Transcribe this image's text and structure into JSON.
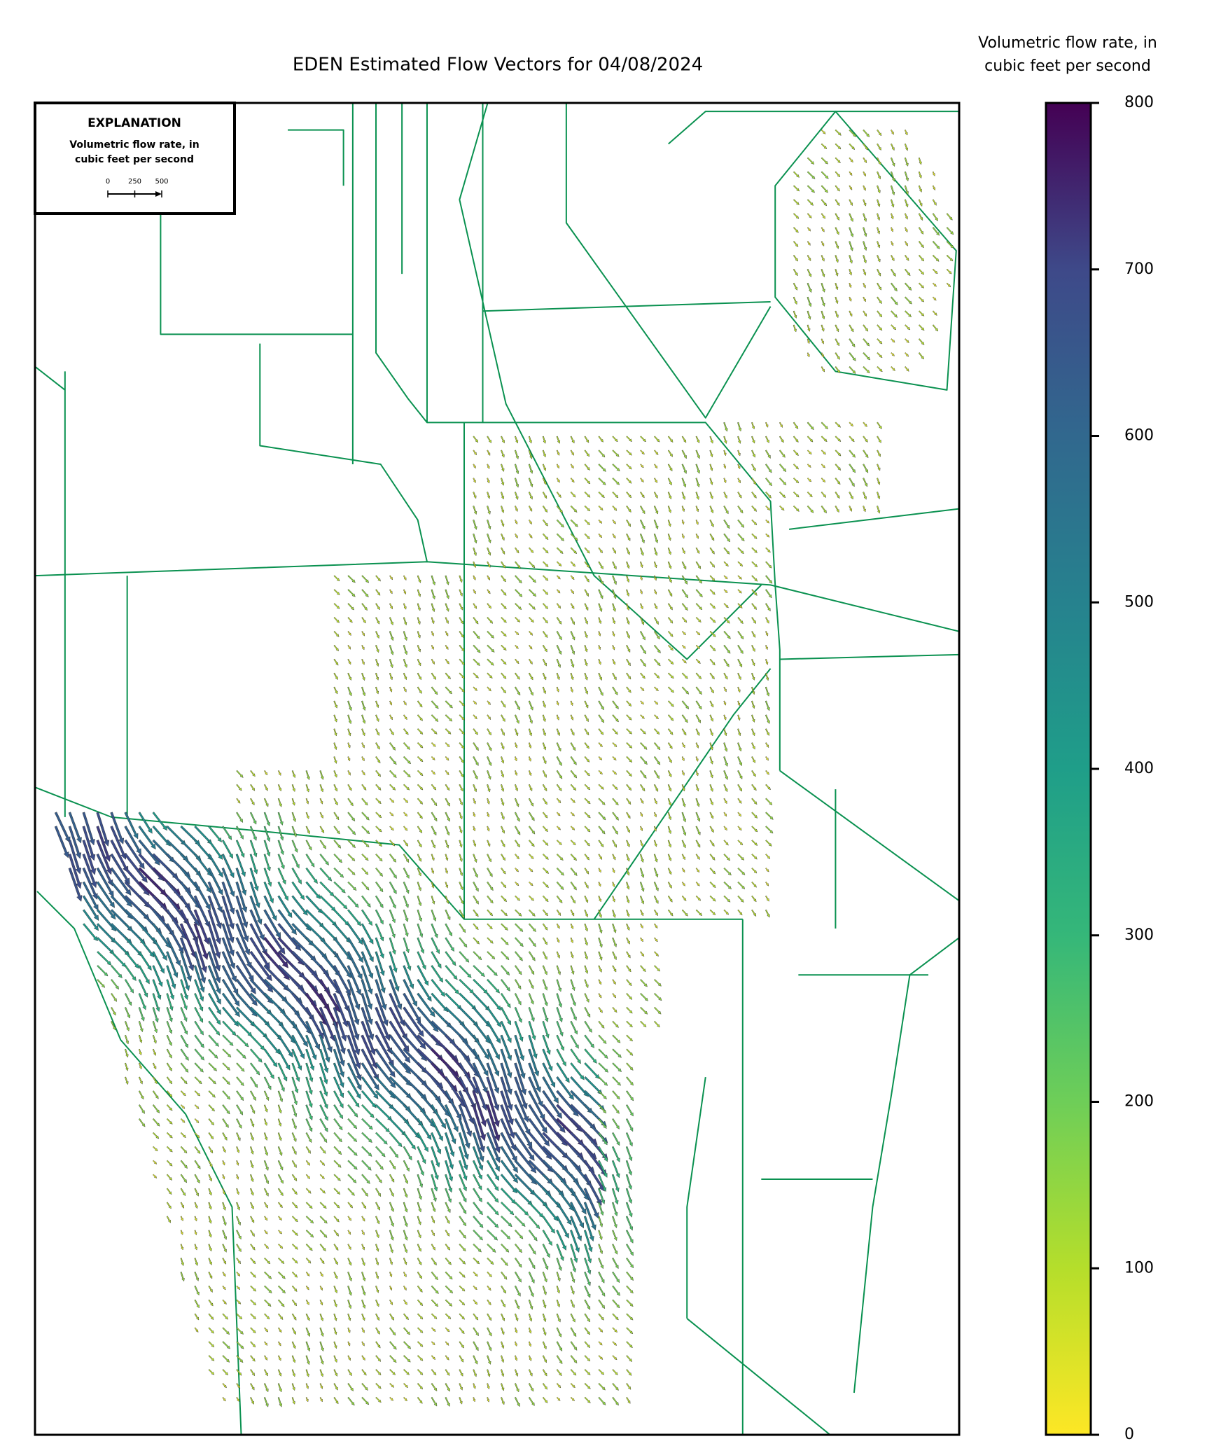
{
  "title": "EDEN Estimated Flow Vectors for 04/08/2024",
  "colorbar": {
    "label_lines": [
      "Volumetric flow rate, in",
      "cubic feet per second"
    ],
    "lim": [
      0,
      800
    ],
    "ticks": [
      0,
      100,
      200,
      300,
      400,
      500,
      600,
      700,
      800
    ]
  },
  "explanation": {
    "heading": "EXPLANATION",
    "label_lines": [
      "Volumetric flow rate, in",
      "cubic feet per second"
    ],
    "scale_ticks": [
      0,
      250,
      500
    ]
  }
}
